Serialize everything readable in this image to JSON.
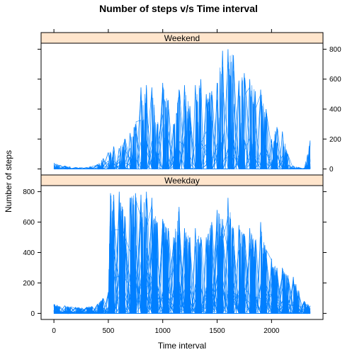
{
  "chart_data": {
    "type": "line",
    "title": "Number of steps v/s Time interval",
    "xlabel": "Time interval",
    "ylabel": "Number of steps",
    "xlim": [
      -118,
      2473
    ],
    "x_ticks": [
      0,
      500,
      1000,
      1500,
      2000
    ],
    "y_ticks": [
      0,
      200,
      400,
      600,
      800
    ],
    "line_color": "#0080ff",
    "strip_color": "#ffe5cc",
    "panels": [
      {
        "strip": "Weekend",
        "ylim": [
          -40,
          840
        ],
        "y_axis_side": "right",
        "series_profile": {
          "x": [
            0,
            100,
            200,
            300,
            400,
            500,
            550,
            600,
            650,
            700,
            750,
            800,
            850,
            900,
            950,
            1000,
            1050,
            1100,
            1150,
            1200,
            1250,
            1300,
            1350,
            1400,
            1450,
            1500,
            1550,
            1600,
            1650,
            1700,
            1750,
            1800,
            1850,
            1900,
            1950,
            2000,
            2050,
            2100,
            2150,
            2200,
            2250,
            2300,
            2355
          ],
          "y_max": [
            40,
            20,
            10,
            10,
            30,
            110,
            150,
            140,
            200,
            240,
            300,
            545,
            560,
            545,
            300,
            575,
            460,
            300,
            530,
            560,
            420,
            560,
            600,
            500,
            520,
            575,
            790,
            800,
            760,
            590,
            640,
            600,
            520,
            530,
            400,
            200,
            280,
            250,
            100,
            20,
            10,
            5,
            190
          ]
        }
      },
      {
        "strip": "Weekday",
        "ylim": [
          -40,
          840
        ],
        "y_axis_side": "left",
        "series_profile": {
          "x": [
            0,
            100,
            200,
            300,
            400,
            450,
            500,
            520,
            550,
            600,
            650,
            700,
            750,
            800,
            850,
            900,
            950,
            1000,
            1050,
            1100,
            1150,
            1200,
            1250,
            1300,
            1350,
            1400,
            1450,
            1500,
            1550,
            1600,
            1650,
            1700,
            1750,
            1800,
            1850,
            1900,
            1950,
            2000,
            2050,
            2100,
            2150,
            2200,
            2250,
            2300,
            2355
          ],
          "y_max": [
            60,
            50,
            40,
            40,
            60,
            100,
            140,
            790,
            780,
            800,
            640,
            760,
            790,
            780,
            800,
            760,
            600,
            620,
            560,
            500,
            700,
            560,
            500,
            560,
            500,
            500,
            600,
            680,
            620,
            760,
            560,
            580,
            520,
            560,
            480,
            600,
            420,
            360,
            300,
            300,
            250,
            240,
            150,
            80,
            50
          ]
        }
      }
    ]
  }
}
